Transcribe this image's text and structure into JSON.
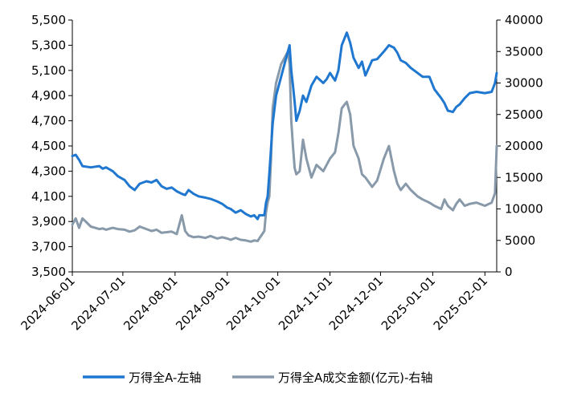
{
  "chart_data": {
    "type": "line",
    "x_ticks": [
      "2024-06-01",
      "2024-07-01",
      "2024-08-01",
      "2024-09-01",
      "2024-10-01",
      "2024-11-01",
      "2024-12-01",
      "2025-01-01",
      "2025-02-01"
    ],
    "left_axis": {
      "min": 3500,
      "max": 5500,
      "ticks": [
        "3,500",
        "3,700",
        "3,900",
        "4,100",
        "4,300",
        "4,500",
        "4,700",
        "4,900",
        "5,100",
        "5,300",
        "5,500"
      ]
    },
    "right_axis": {
      "min": 0,
      "max": 40000,
      "ticks": [
        "0",
        "5000",
        "10000",
        "15000",
        "20000",
        "25000",
        "30000",
        "35000",
        "40000"
      ]
    },
    "grid": false,
    "legend_position": "bottom",
    "colors": {
      "index": "#1f77d0",
      "turnover": "#8899aa"
    },
    "series": [
      {
        "name": "万得全A-左轴",
        "axis": "left",
        "points": [
          [
            "2024-06-01",
            4420
          ],
          [
            "2024-06-03",
            4430
          ],
          [
            "2024-06-05",
            4390
          ],
          [
            "2024-06-07",
            4340
          ],
          [
            "2024-06-12",
            4330
          ],
          [
            "2024-06-17",
            4340
          ],
          [
            "2024-06-19",
            4320
          ],
          [
            "2024-06-21",
            4330
          ],
          [
            "2024-06-25",
            4300
          ],
          [
            "2024-06-28",
            4260
          ],
          [
            "2024-07-02",
            4230
          ],
          [
            "2024-07-05",
            4180
          ],
          [
            "2024-07-08",
            4150
          ],
          [
            "2024-07-11",
            4200
          ],
          [
            "2024-07-15",
            4220
          ],
          [
            "2024-07-18",
            4210
          ],
          [
            "2024-07-21",
            4230
          ],
          [
            "2024-07-24",
            4180
          ],
          [
            "2024-07-27",
            4160
          ],
          [
            "2024-07-30",
            4170
          ],
          [
            "2024-08-02",
            4140
          ],
          [
            "2024-08-05",
            4120
          ],
          [
            "2024-08-07",
            4110
          ],
          [
            "2024-08-09",
            4150
          ],
          [
            "2024-08-12",
            4120
          ],
          [
            "2024-08-15",
            4100
          ],
          [
            "2024-08-19",
            4090
          ],
          [
            "2024-08-22",
            4080
          ],
          [
            "2024-08-26",
            4060
          ],
          [
            "2024-08-29",
            4040
          ],
          [
            "2024-09-01",
            4010
          ],
          [
            "2024-09-03",
            4000
          ],
          [
            "2024-09-06",
            3970
          ],
          [
            "2024-09-09",
            3990
          ],
          [
            "2024-09-12",
            3960
          ],
          [
            "2024-09-15",
            3940
          ],
          [
            "2024-09-17",
            3950
          ],
          [
            "2024-09-19",
            3920
          ],
          [
            "2024-09-20",
            3950
          ],
          [
            "2024-09-23",
            3950
          ],
          [
            "2024-09-24",
            4050
          ],
          [
            "2024-09-25",
            4100
          ],
          [
            "2024-09-26",
            4280
          ],
          [
            "2024-09-27",
            4480
          ],
          [
            "2024-09-28",
            4680
          ],
          [
            "2024-09-30",
            4900
          ],
          [
            "2024-10-03",
            5050
          ],
          [
            "2024-10-05",
            5150
          ],
          [
            "2024-10-08",
            5300
          ],
          [
            "2024-10-09",
            5100
          ],
          [
            "2024-10-10",
            4980
          ],
          [
            "2024-10-11",
            4850
          ],
          [
            "2024-10-12",
            4700
          ],
          [
            "2024-10-14",
            4780
          ],
          [
            "2024-10-16",
            4900
          ],
          [
            "2024-10-18",
            4850
          ],
          [
            "2024-10-21",
            4980
          ],
          [
            "2024-10-24",
            5050
          ],
          [
            "2024-10-28",
            5000
          ],
          [
            "2024-10-30",
            5030
          ],
          [
            "2024-11-01",
            5080
          ],
          [
            "2024-11-04",
            5020
          ],
          [
            "2024-11-06",
            5100
          ],
          [
            "2024-11-08",
            5300
          ],
          [
            "2024-11-11",
            5400
          ],
          [
            "2024-11-13",
            5320
          ],
          [
            "2024-11-15",
            5200
          ],
          [
            "2024-11-18",
            5120
          ],
          [
            "2024-11-20",
            5170
          ],
          [
            "2024-11-22",
            5060
          ],
          [
            "2024-11-26",
            5180
          ],
          [
            "2024-11-29",
            5190
          ],
          [
            "2024-12-03",
            5250
          ],
          [
            "2024-12-06",
            5300
          ],
          [
            "2024-12-09",
            5280
          ],
          [
            "2024-12-11",
            5240
          ],
          [
            "2024-12-13",
            5180
          ],
          [
            "2024-12-16",
            5160
          ],
          [
            "2024-12-19",
            5120
          ],
          [
            "2024-12-23",
            5080
          ],
          [
            "2024-12-26",
            5050
          ],
          [
            "2024-12-30",
            5050
          ],
          [
            "2025-01-02",
            4950
          ],
          [
            "2025-01-06",
            4880
          ],
          [
            "2025-01-08",
            4840
          ],
          [
            "2025-01-10",
            4780
          ],
          [
            "2025-01-13",
            4770
          ],
          [
            "2025-01-15",
            4810
          ],
          [
            "2025-01-17",
            4830
          ],
          [
            "2025-01-20",
            4880
          ],
          [
            "2025-01-23",
            4920
          ],
          [
            "2025-01-27",
            4930
          ],
          [
            "2025-02-01",
            4920
          ],
          [
            "2025-02-05",
            4930
          ],
          [
            "2025-02-07",
            5000
          ],
          [
            "2025-02-08",
            5080
          ]
        ]
      },
      {
        "name": "万得全A成交金额(亿元)-右轴",
        "axis": "right",
        "points": [
          [
            "2024-06-01",
            7500
          ],
          [
            "2024-06-03",
            8500
          ],
          [
            "2024-06-05",
            7000
          ],
          [
            "2024-06-07",
            8500
          ],
          [
            "2024-06-12",
            7200
          ],
          [
            "2024-06-17",
            6800
          ],
          [
            "2024-06-19",
            6900
          ],
          [
            "2024-06-21",
            6700
          ],
          [
            "2024-06-25",
            7000
          ],
          [
            "2024-06-28",
            6800
          ],
          [
            "2024-07-02",
            6700
          ],
          [
            "2024-07-05",
            6400
          ],
          [
            "2024-07-08",
            6600
          ],
          [
            "2024-07-11",
            7200
          ],
          [
            "2024-07-15",
            6800
          ],
          [
            "2024-07-18",
            6500
          ],
          [
            "2024-07-21",
            6700
          ],
          [
            "2024-07-24",
            6200
          ],
          [
            "2024-07-27",
            6300
          ],
          [
            "2024-07-30",
            6400
          ],
          [
            "2024-08-02",
            6000
          ],
          [
            "2024-08-05",
            9000
          ],
          [
            "2024-08-07",
            6500
          ],
          [
            "2024-08-09",
            5800
          ],
          [
            "2024-08-12",
            5500
          ],
          [
            "2024-08-15",
            5600
          ],
          [
            "2024-08-19",
            5400
          ],
          [
            "2024-08-22",
            5700
          ],
          [
            "2024-08-26",
            5300
          ],
          [
            "2024-08-29",
            5500
          ],
          [
            "2024-09-01",
            5300
          ],
          [
            "2024-09-03",
            5100
          ],
          [
            "2024-09-06",
            5400
          ],
          [
            "2024-09-09",
            5100
          ],
          [
            "2024-09-12",
            5000
          ],
          [
            "2024-09-15",
            4800
          ],
          [
            "2024-09-17",
            5000
          ],
          [
            "2024-09-19",
            4900
          ],
          [
            "2024-09-20",
            5300
          ],
          [
            "2024-09-23",
            6500
          ],
          [
            "2024-09-24",
            9500
          ],
          [
            "2024-09-25",
            11000
          ],
          [
            "2024-09-26",
            12000
          ],
          [
            "2024-09-27",
            18000
          ],
          [
            "2024-09-28",
            26000
          ],
          [
            "2024-09-30",
            30000
          ],
          [
            "2024-10-03",
            33000
          ],
          [
            "2024-10-05",
            34000
          ],
          [
            "2024-10-07",
            35000
          ],
          [
            "2024-10-08",
            33000
          ],
          [
            "2024-10-09",
            24000
          ],
          [
            "2024-10-10",
            20000
          ],
          [
            "2024-10-11",
            16500
          ],
          [
            "2024-10-12",
            15500
          ],
          [
            "2024-10-14",
            16000
          ],
          [
            "2024-10-16",
            21000
          ],
          [
            "2024-10-18",
            18000
          ],
          [
            "2024-10-21",
            15000
          ],
          [
            "2024-10-24",
            17000
          ],
          [
            "2024-10-28",
            16000
          ],
          [
            "2024-10-30",
            17000
          ],
          [
            "2024-11-01",
            18000
          ],
          [
            "2024-11-04",
            19000
          ],
          [
            "2024-11-06",
            22000
          ],
          [
            "2024-11-08",
            26000
          ],
          [
            "2024-11-11",
            27000
          ],
          [
            "2024-11-13",
            25000
          ],
          [
            "2024-11-15",
            20000
          ],
          [
            "2024-11-18",
            18000
          ],
          [
            "2024-11-20",
            15500
          ],
          [
            "2024-11-22",
            15000
          ],
          [
            "2024-11-26",
            13500
          ],
          [
            "2024-11-29",
            14500
          ],
          [
            "2024-12-03",
            18000
          ],
          [
            "2024-12-06",
            20000
          ],
          [
            "2024-12-09",
            16000
          ],
          [
            "2024-12-11",
            14000
          ],
          [
            "2024-12-13",
            13000
          ],
          [
            "2024-12-16",
            14000
          ],
          [
            "2024-12-19",
            13000
          ],
          [
            "2024-12-23",
            12000
          ],
          [
            "2024-12-26",
            11500
          ],
          [
            "2024-12-30",
            11000
          ],
          [
            "2025-01-02",
            10500
          ],
          [
            "2025-01-06",
            10000
          ],
          [
            "2025-01-08",
            11500
          ],
          [
            "2025-01-10",
            10500
          ],
          [
            "2025-01-13",
            9800
          ],
          [
            "2025-01-15",
            10800
          ],
          [
            "2025-01-17",
            11500
          ],
          [
            "2025-01-20",
            10500
          ],
          [
            "2025-01-23",
            10800
          ],
          [
            "2025-01-27",
            11000
          ],
          [
            "2025-02-01",
            10500
          ],
          [
            "2025-02-05",
            11000
          ],
          [
            "2025-02-07",
            12500
          ],
          [
            "2025-02-08",
            20000
          ]
        ]
      }
    ]
  }
}
